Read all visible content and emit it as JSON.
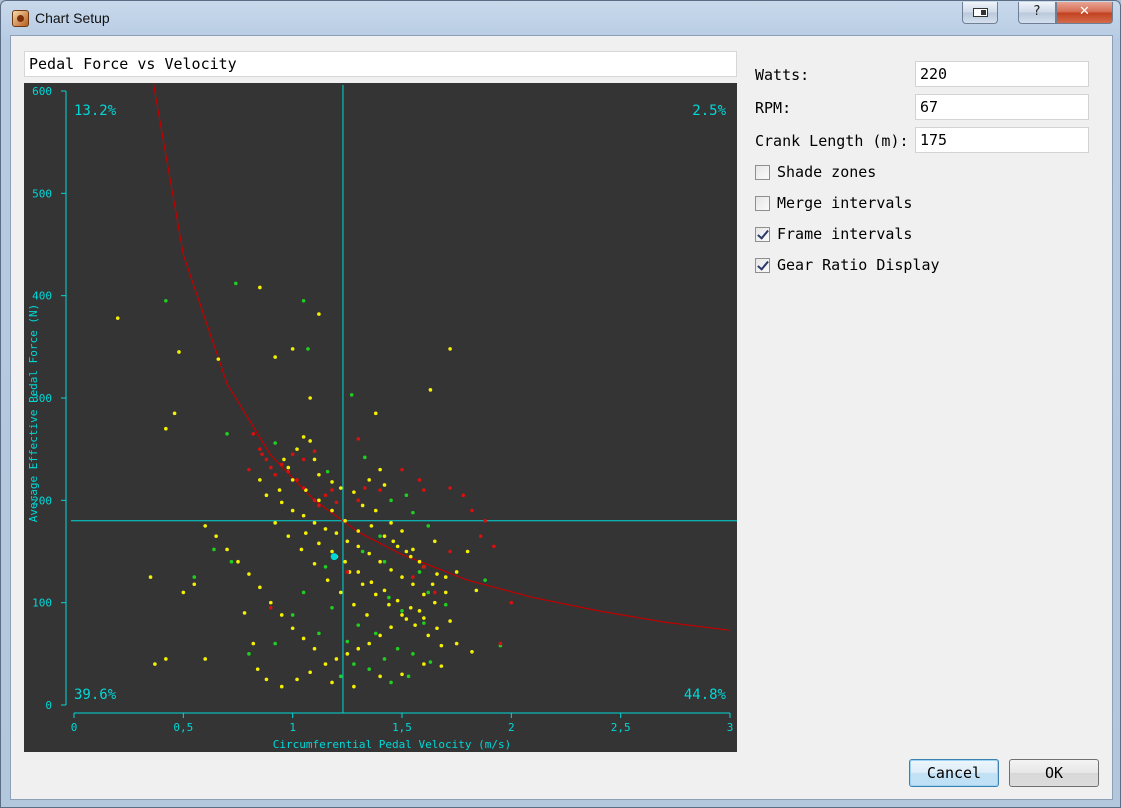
{
  "window": {
    "title": "Chart Setup",
    "help_label": "?",
    "close_label": "✕"
  },
  "chart_title_input": {
    "value": "Pedal Force vs Velocity"
  },
  "form": {
    "watts": {
      "label": "Watts:",
      "value": "220"
    },
    "rpm": {
      "label": "RPM:",
      "value": "67"
    },
    "crank": {
      "label": "Crank Length (m):",
      "value": "175"
    }
  },
  "options": [
    {
      "label": "Shade zones",
      "checked": false
    },
    {
      "label": "Merge intervals",
      "checked": false
    },
    {
      "label": "Frame intervals",
      "checked": true
    },
    {
      "label": "Gear Ratio Display",
      "checked": true
    }
  ],
  "buttons": {
    "cancel": "Cancel",
    "ok": "OK"
  },
  "colors": {
    "background": "#343434",
    "axis": "#00d8d8",
    "curve": "#c00000",
    "green": "#1fcf1f",
    "yellow": "#f5f000",
    "red": "#d81010"
  },
  "chart_data": {
    "type": "scatter",
    "title": "",
    "xlabel": "Circumferential Pedal Velocity (m/s)",
    "ylabel": "Average Effective Pedal Force (N)",
    "xlim": [
      0,
      3
    ],
    "ylim": [
      0,
      600
    ],
    "x_ticks": [
      "0",
      "0,5",
      "1",
      "1,5",
      "2",
      "2,5",
      "3"
    ],
    "y_ticks": [
      "0",
      "100",
      "200",
      "300",
      "400",
      "500",
      "600"
    ],
    "crosshair": {
      "x": 1.23,
      "y": 180
    },
    "quadrant_labels": {
      "top_left": "13.2%",
      "top_right": "2.5%",
      "bottom_left": "39.6%",
      "bottom_right": "44.8%"
    },
    "curve": {
      "description": "constant power",
      "watts": 220,
      "x": [
        0.36,
        0.5,
        0.7,
        0.9,
        1.1,
        1.3,
        1.5,
        1.8,
        2.1,
        2.4,
        2.7,
        3.0
      ],
      "y": [
        611,
        440,
        314,
        244,
        200,
        169,
        147,
        122,
        105,
        92,
        81,
        73
      ]
    },
    "series": [
      {
        "color": "green",
        "points": [
          [
            0.42,
            395
          ],
          [
            0.74,
            412
          ],
          [
            1.05,
            395
          ],
          [
            1.07,
            348
          ],
          [
            1.27,
            303
          ],
          [
            0.7,
            265
          ],
          [
            1.16,
            228
          ],
          [
            0.92,
            256
          ],
          [
            1.33,
            242
          ],
          [
            1.45,
            200
          ],
          [
            1.52,
            205
          ],
          [
            1.55,
            188
          ],
          [
            1.62,
            175
          ],
          [
            1.4,
            165
          ],
          [
            1.58,
            130
          ],
          [
            1.62,
            110
          ],
          [
            1.44,
            105
          ],
          [
            1.5,
            92
          ],
          [
            1.6,
            80
          ],
          [
            1.3,
            78
          ],
          [
            1.38,
            70
          ],
          [
            1.25,
            62
          ],
          [
            1.48,
            55
          ],
          [
            1.55,
            50
          ],
          [
            1.42,
            45
          ],
          [
            1.63,
            42
          ],
          [
            1.35,
            35
          ],
          [
            1.28,
            40
          ],
          [
            0.8,
            50
          ],
          [
            0.92,
            60
          ],
          [
            0.72,
            140
          ],
          [
            0.64,
            152
          ],
          [
            0.55,
            125
          ],
          [
            1.05,
            110
          ],
          [
            1.18,
            95
          ],
          [
            1.12,
            70
          ],
          [
            1.0,
            88
          ],
          [
            1.53,
            28
          ],
          [
            1.45,
            22
          ],
          [
            1.22,
            28
          ],
          [
            1.88,
            122
          ],
          [
            1.95,
            58
          ],
          [
            1.7,
            98
          ],
          [
            1.15,
            135
          ],
          [
            1.32,
            150
          ],
          [
            1.42,
            140
          ]
        ]
      },
      {
        "color": "yellow",
        "points": [
          [
            0.2,
            378
          ],
          [
            0.48,
            345
          ],
          [
            0.46,
            285
          ],
          [
            0.42,
            270
          ],
          [
            0.66,
            338
          ],
          [
            0.85,
            408
          ],
          [
            1.12,
            382
          ],
          [
            1.0,
            348
          ],
          [
            0.92,
            340
          ],
          [
            1.72,
            348
          ],
          [
            1.63,
            308
          ],
          [
            1.38,
            285
          ],
          [
            1.08,
            300
          ],
          [
            1.05,
            262
          ],
          [
            1.1,
            240
          ],
          [
            0.98,
            232
          ],
          [
            0.85,
            220
          ],
          [
            0.88,
            205
          ],
          [
            0.95,
            198
          ],
          [
            1.0,
            190
          ],
          [
            1.05,
            185
          ],
          [
            1.1,
            178
          ],
          [
            1.15,
            172
          ],
          [
            1.2,
            168
          ],
          [
            1.25,
            160
          ],
          [
            1.3,
            155
          ],
          [
            1.35,
            148
          ],
          [
            1.4,
            140
          ],
          [
            1.45,
            132
          ],
          [
            1.5,
            125
          ],
          [
            1.55,
            118
          ],
          [
            1.6,
            108
          ],
          [
            1.65,
            100
          ],
          [
            1.58,
            92
          ],
          [
            1.52,
            84
          ],
          [
            1.45,
            76
          ],
          [
            1.4,
            68
          ],
          [
            1.35,
            60
          ],
          [
            1.3,
            55
          ],
          [
            1.25,
            50
          ],
          [
            1.2,
            45
          ],
          [
            1.15,
            40
          ],
          [
            1.1,
            55
          ],
          [
            1.05,
            65
          ],
          [
            1.0,
            75
          ],
          [
            0.95,
            88
          ],
          [
            0.9,
            100
          ],
          [
            0.85,
            115
          ],
          [
            0.8,
            128
          ],
          [
            0.75,
            140
          ],
          [
            0.7,
            152
          ],
          [
            0.65,
            165
          ],
          [
            0.6,
            175
          ],
          [
            0.55,
            118
          ],
          [
            0.5,
            110
          ],
          [
            0.35,
            125
          ],
          [
            0.37,
            40
          ],
          [
            0.42,
            45
          ],
          [
            0.6,
            45
          ],
          [
            0.78,
            90
          ],
          [
            0.82,
            60
          ],
          [
            0.84,
            35
          ],
          [
            0.88,
            25
          ],
          [
            0.95,
            18
          ],
          [
            1.02,
            25
          ],
          [
            1.08,
            32
          ],
          [
            1.18,
            22
          ],
          [
            1.28,
            18
          ],
          [
            1.4,
            28
          ],
          [
            1.5,
            30
          ],
          [
            1.6,
            40
          ],
          [
            1.68,
            38
          ],
          [
            1.75,
            60
          ],
          [
            1.82,
            52
          ],
          [
            1.72,
            82
          ],
          [
            1.84,
            112
          ],
          [
            1.7,
            125
          ],
          [
            1.75,
            130
          ],
          [
            1.8,
            150
          ],
          [
            1.65,
            160
          ],
          [
            1.55,
            152
          ],
          [
            1.5,
            170
          ],
          [
            1.45,
            178
          ],
          [
            1.38,
            190
          ],
          [
            1.32,
            195
          ],
          [
            1.28,
            208
          ],
          [
            1.22,
            212
          ],
          [
            1.18,
            218
          ],
          [
            1.12,
            225
          ],
          [
            1.4,
            230
          ],
          [
            1.35,
            220
          ],
          [
            1.42,
            215
          ],
          [
            1.2,
            145
          ],
          [
            1.26,
            130
          ],
          [
            1.32,
            118
          ],
          [
            1.38,
            108
          ],
          [
            1.44,
            98
          ],
          [
            1.5,
            88
          ],
          [
            1.56,
            78
          ],
          [
            1.62,
            68
          ],
          [
            1.68,
            58
          ],
          [
            1.34,
            88
          ],
          [
            1.28,
            98
          ],
          [
            1.22,
            110
          ],
          [
            1.16,
            122
          ],
          [
            1.1,
            138
          ],
          [
            1.04,
            152
          ],
          [
            0.98,
            165
          ],
          [
            0.92,
            178
          ],
          [
            1.06,
            168
          ],
          [
            1.12,
            158
          ],
          [
            1.18,
            150
          ],
          [
            1.24,
            140
          ],
          [
            1.3,
            130
          ],
          [
            1.36,
            120
          ],
          [
            1.42,
            112
          ],
          [
            1.48,
            102
          ],
          [
            1.54,
            95
          ],
          [
            1.6,
            85
          ],
          [
            1.66,
            75
          ],
          [
            1.3,
            170
          ],
          [
            1.24,
            180
          ],
          [
            1.18,
            190
          ],
          [
            1.12,
            200
          ],
          [
            1.06,
            210
          ],
          [
            1.0,
            220
          ],
          [
            0.94,
            210
          ],
          [
            0.96,
            240
          ],
          [
            1.02,
            250
          ],
          [
            1.08,
            258
          ],
          [
            1.46,
            160
          ],
          [
            1.52,
            150
          ],
          [
            1.58,
            140
          ],
          [
            1.64,
            118
          ],
          [
            1.7,
            110
          ],
          [
            1.36,
            175
          ],
          [
            1.42,
            165
          ],
          [
            1.48,
            155
          ],
          [
            1.54,
            145
          ],
          [
            1.6,
            135
          ],
          [
            1.66,
            128
          ]
        ]
      },
      {
        "color": "red",
        "points": [
          [
            0.82,
            265
          ],
          [
            0.85,
            250
          ],
          [
            0.88,
            240
          ],
          [
            0.9,
            232
          ],
          [
            0.92,
            225
          ],
          [
            0.95,
            235
          ],
          [
            0.98,
            228
          ],
          [
            1.02,
            220
          ],
          [
            1.05,
            212
          ],
          [
            0.86,
            245
          ],
          [
            0.8,
            230
          ],
          [
            1.1,
            200
          ],
          [
            1.12,
            195
          ],
          [
            1.15,
            205
          ],
          [
            1.18,
            210
          ],
          [
            1.2,
            198
          ],
          [
            1.05,
            240
          ],
          [
            1.0,
            245
          ],
          [
            1.1,
            248
          ],
          [
            1.3,
            200
          ],
          [
            1.33,
            212
          ],
          [
            1.4,
            210
          ],
          [
            1.6,
            210
          ],
          [
            1.72,
            212
          ],
          [
            1.78,
            205
          ],
          [
            1.86,
            165
          ],
          [
            1.92,
            155
          ],
          [
            1.72,
            150
          ],
          [
            1.6,
            135
          ],
          [
            1.55,
            125
          ],
          [
            1.65,
            110
          ],
          [
            2.0,
            100
          ],
          [
            1.95,
            60
          ],
          [
            0.9,
            95
          ],
          [
            1.25,
            130
          ],
          [
            1.3,
            260
          ],
          [
            1.5,
            230
          ],
          [
            1.58,
            220
          ],
          [
            1.82,
            190
          ],
          [
            1.88,
            180
          ]
        ]
      },
      {
        "color": "cyan",
        "points": [
          [
            1.19,
            145
          ]
        ]
      }
    ]
  }
}
